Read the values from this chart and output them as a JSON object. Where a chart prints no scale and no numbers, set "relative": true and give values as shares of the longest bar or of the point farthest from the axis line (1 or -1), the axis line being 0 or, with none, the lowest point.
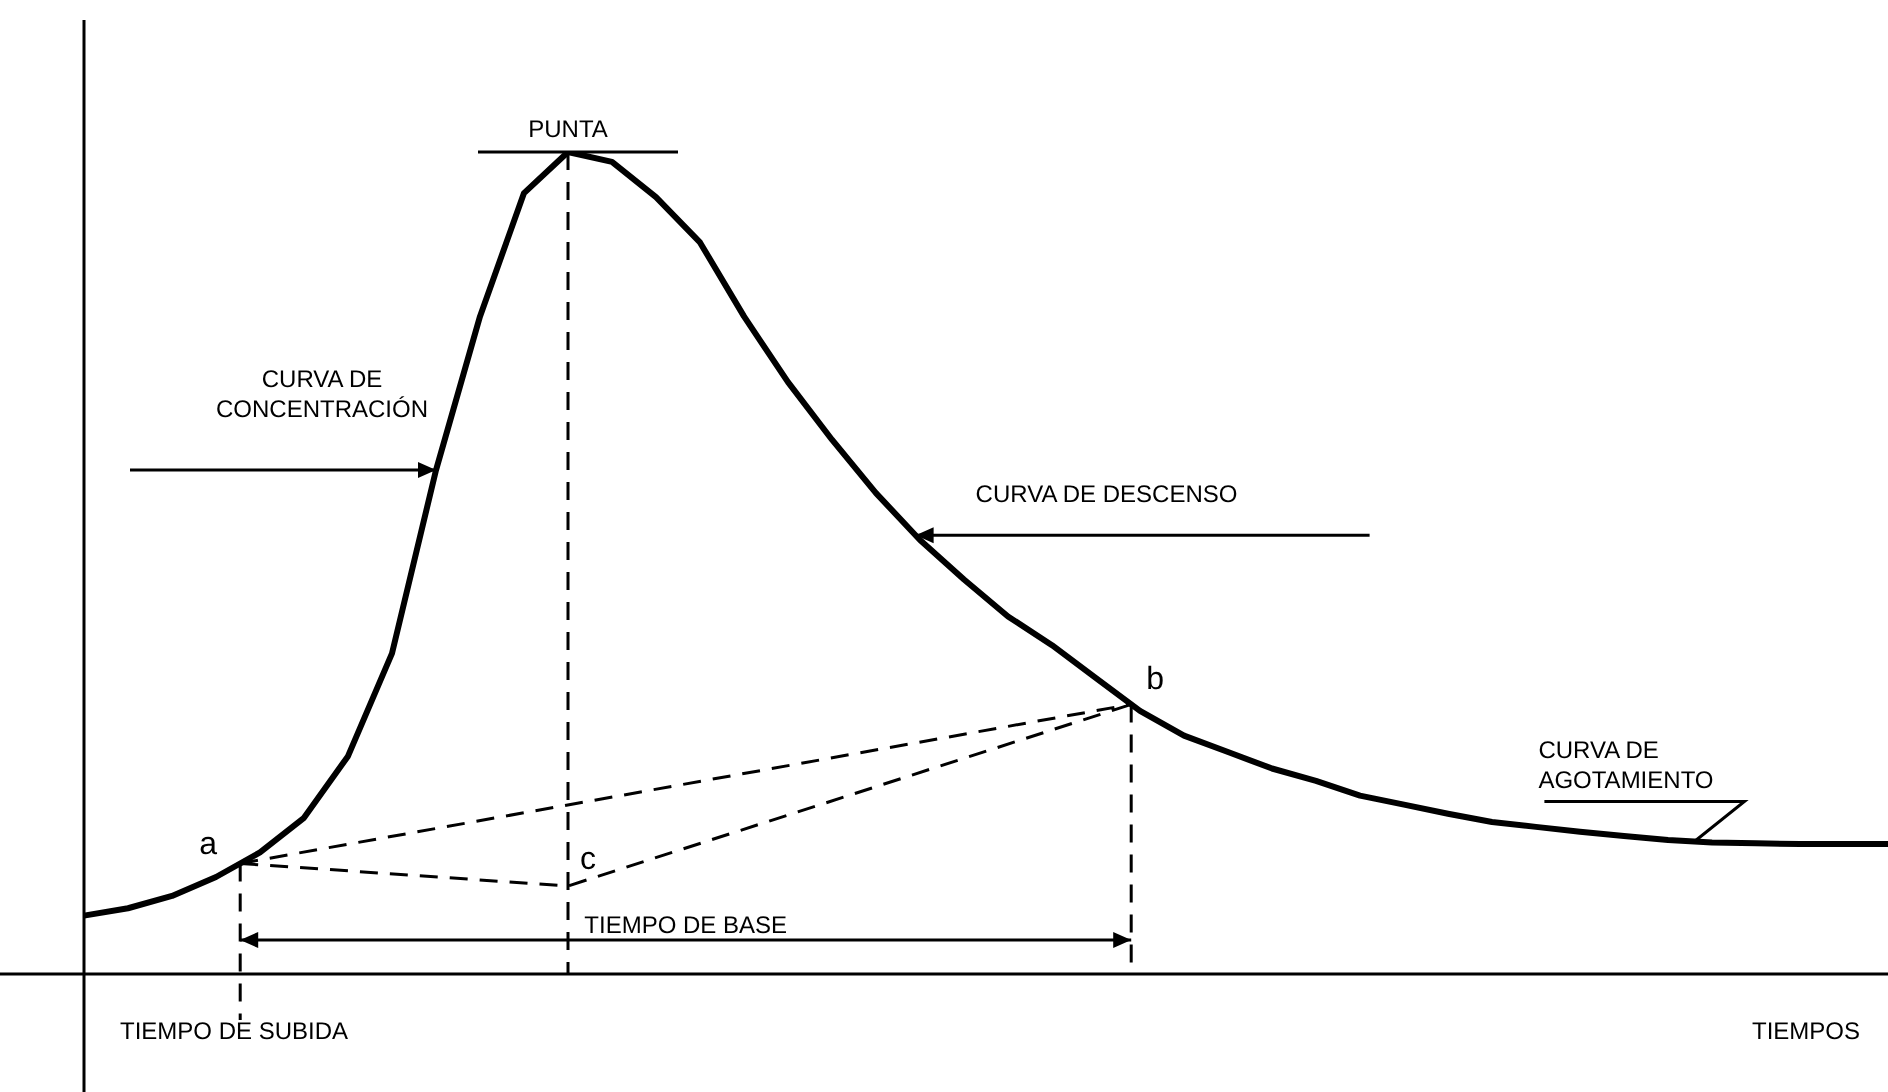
{
  "chart_data": {
    "type": "line",
    "relative": true,
    "xlabel": "TIEMPOS",
    "marker": "none",
    "line_style": "solid",
    "categories": [
      null,
      null,
      null,
      null,
      null,
      null,
      null,
      null,
      null,
      null,
      null,
      null,
      null,
      null,
      null,
      null,
      null,
      null,
      null,
      null,
      null,
      null,
      null,
      null,
      null,
      null,
      null,
      null,
      null,
      null,
      null,
      null,
      null,
      null,
      null,
      null,
      null,
      null,
      null,
      null,
      null,
      null
    ],
    "series": [
      {
        "color": "#000000",
        "values": [
          0.071,
          0.08,
          0.095,
          0.118,
          0.148,
          0.19,
          0.265,
          0.39,
          0.613,
          0.8,
          0.95,
          1,
          0.988,
          0.945,
          0.89,
          0.8,
          0.72,
          0.65,
          0.585,
          0.528,
          0.48,
          0.435,
          0.4,
          0.36,
          0.32,
          0.29,
          0.27,
          0.25,
          0.235,
          0.217,
          0.206,
          0.195,
          0.185,
          0.179,
          0.173,
          0.168,
          0.163,
          0.16,
          0.159,
          0.158,
          0.158,
          0.158
        ]
      }
    ],
    "annotations": [
      "PUNTA",
      "CURVA DE\nCONCENTRACIÓN",
      "CURVA DE DESCENSO",
      "CURVA DE\nAGOTAMIENTO",
      "a",
      "b",
      "c",
      "TIEMPO DE BASE",
      "TIEMPO DE SUBIDA"
    ]
  }
}
